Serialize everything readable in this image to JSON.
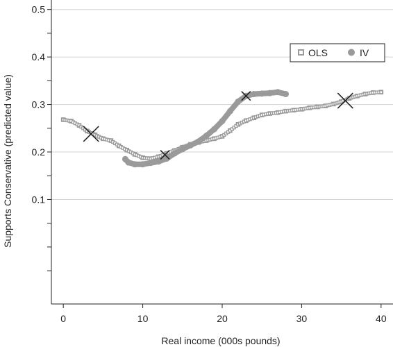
{
  "chart_data": {
    "type": "scatter",
    "xlabel": "Real income (000s pounds)",
    "ylabel": "Supports Conservative (predicted value)",
    "xlim": [
      -1.5,
      41.5
    ],
    "ylim": [
      -0.12,
      0.52
    ],
    "xticks": [
      0,
      10,
      20,
      30,
      40
    ],
    "yticks": [
      0.1,
      0.2,
      0.3,
      0.4,
      0.5
    ],
    "ytick_labels": [
      "0.1",
      "0.2",
      "0.3",
      "0.4",
      "0.5"
    ],
    "grid": "horizontal",
    "legend_position": "top-right",
    "colors": {
      "ols": "#9a9a9a",
      "iv": "#9a9a9a",
      "marker": "#222222"
    },
    "series": [
      {
        "name": "OLS",
        "marker": "square",
        "points": [
          [
            0.0,
            0.268
          ],
          [
            1.0,
            0.265
          ],
          [
            2.0,
            0.256
          ],
          [
            3.0,
            0.244
          ],
          [
            4.0,
            0.236
          ],
          [
            5.0,
            0.228
          ],
          [
            6.0,
            0.224
          ],
          [
            7.0,
            0.213
          ],
          [
            8.0,
            0.204
          ],
          [
            9.0,
            0.195
          ],
          [
            10.0,
            0.188
          ],
          [
            11.0,
            0.186
          ],
          [
            12.0,
            0.19
          ],
          [
            13.0,
            0.197
          ],
          [
            14.0,
            0.203
          ],
          [
            15.0,
            0.21
          ],
          [
            16.0,
            0.216
          ],
          [
            17.0,
            0.22
          ],
          [
            18.0,
            0.224
          ],
          [
            19.0,
            0.228
          ],
          [
            20.0,
            0.233
          ],
          [
            21.0,
            0.245
          ],
          [
            22.0,
            0.258
          ],
          [
            23.0,
            0.266
          ],
          [
            24.0,
            0.272
          ],
          [
            25.0,
            0.278
          ],
          [
            26.0,
            0.281
          ],
          [
            27.0,
            0.283
          ],
          [
            28.0,
            0.286
          ],
          [
            29.0,
            0.288
          ],
          [
            30.0,
            0.29
          ],
          [
            31.0,
            0.293
          ],
          [
            32.0,
            0.295
          ],
          [
            33.0,
            0.297
          ],
          [
            34.0,
            0.301
          ],
          [
            35.0,
            0.306
          ],
          [
            36.0,
            0.313
          ],
          [
            37.0,
            0.318
          ],
          [
            38.0,
            0.322
          ],
          [
            39.0,
            0.325
          ],
          [
            40.0,
            0.326
          ]
        ]
      },
      {
        "name": "IV",
        "marker": "circle",
        "points": [
          [
            7.8,
            0.185
          ],
          [
            8.2,
            0.178
          ],
          [
            9.0,
            0.174
          ],
          [
            10.0,
            0.174
          ],
          [
            11.0,
            0.177
          ],
          [
            12.0,
            0.18
          ],
          [
            13.0,
            0.186
          ],
          [
            14.0,
            0.197
          ],
          [
            15.0,
            0.206
          ],
          [
            16.0,
            0.214
          ],
          [
            17.0,
            0.222
          ],
          [
            18.0,
            0.234
          ],
          [
            19.0,
            0.248
          ],
          [
            20.0,
            0.265
          ],
          [
            21.0,
            0.286
          ],
          [
            22.0,
            0.306
          ],
          [
            23.0,
            0.318
          ],
          [
            24.0,
            0.322
          ],
          [
            25.0,
            0.323
          ],
          [
            26.0,
            0.324
          ],
          [
            27.0,
            0.326
          ],
          [
            28.0,
            0.322
          ]
        ]
      }
    ],
    "cross_markers": [
      {
        "x": 3.5,
        "y": 0.238,
        "size": "large"
      },
      {
        "x": 12.8,
        "y": 0.194,
        "size": "small"
      },
      {
        "x": 23.0,
        "y": 0.318,
        "size": "small"
      },
      {
        "x": 35.5,
        "y": 0.308,
        "size": "large"
      }
    ]
  }
}
